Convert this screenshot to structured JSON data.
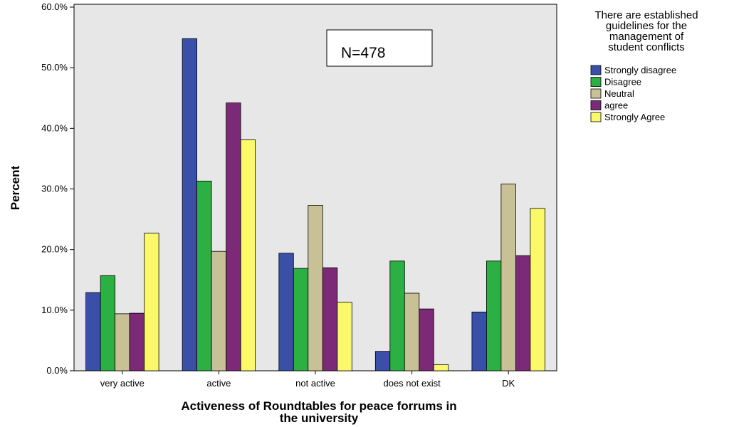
{
  "chart_data": {
    "type": "bar",
    "categories": [
      "very active",
      "active",
      "not active",
      "does not exist",
      "DK"
    ],
    "series": [
      {
        "name": "Strongly disagree",
        "color": "#3a4fa8",
        "values": [
          12.9,
          54.8,
          19.4,
          3.2,
          9.7
        ]
      },
      {
        "name": "Disagree",
        "color": "#2cb044",
        "values": [
          15.7,
          31.3,
          16.9,
          18.1,
          18.1
        ]
      },
      {
        "name": "Neutral",
        "color": "#c9c196",
        "values": [
          9.4,
          19.7,
          27.3,
          12.8,
          30.8
        ]
      },
      {
        "name": "agree",
        "color": "#7c2a78",
        "values": [
          9.5,
          44.2,
          17.0,
          10.2,
          19.0
        ]
      },
      {
        "name": "Strongly Agree",
        "color": "#fbf86a",
        "values": [
          22.7,
          38.1,
          11.3,
          1.0,
          26.8
        ]
      }
    ],
    "xlabel_lines": [
      "Activeness of Roundtables for peace forrums in",
      "the university"
    ],
    "ylabel": "Percent",
    "ylim": [
      0,
      60
    ],
    "yticks": [
      "0.0%",
      "10.0%",
      "20.0%",
      "30.0%",
      "40.0%",
      "50.0%",
      "60.0%"
    ],
    "legend_title_lines": [
      "There are established",
      "guidelines for the",
      "management of",
      "student conflicts"
    ],
    "legend_position": "right",
    "annotation": "N=478",
    "plot_background": "#e7e7e7"
  }
}
